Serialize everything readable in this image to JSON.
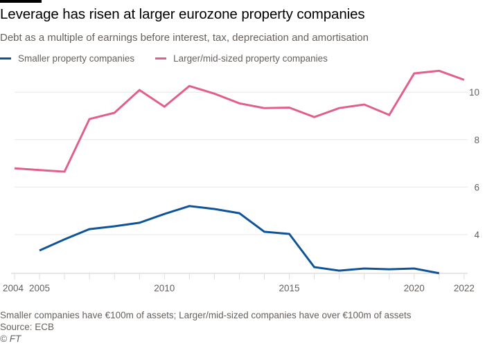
{
  "header": {
    "title": "Leverage has risen at larger eurozone property companies",
    "subtitle": "Debt as a multiple of earnings before interest, tax, depreciation and amortisation"
  },
  "footer": {
    "note": "Smaller companies have €100m of assets; Larger/mid-sized companies have over €100m of assets",
    "source": "Source: ECB",
    "credit": "© FT"
  },
  "chart_data": {
    "type": "line",
    "title": "Leverage has risen at larger eurozone property companies",
    "subtitle": "Debt as a multiple of earnings before interest, tax, depreciation and amortisation",
    "xlabel": "",
    "ylabel": "",
    "xlim": [
      2004,
      2022
    ],
    "ylim": [
      2.4,
      11.0
    ],
    "x_ticks": [
      2004,
      2005,
      2006,
      2007,
      2008,
      2009,
      2010,
      2011,
      2012,
      2013,
      2014,
      2015,
      2016,
      2017,
      2018,
      2019,
      2020,
      2021,
      2022
    ],
    "x_tick_labels": [
      {
        "value": 2004,
        "label": "2004"
      },
      {
        "value": 2005,
        "label": "2005"
      },
      {
        "value": 2010,
        "label": "2010"
      },
      {
        "value": 2015,
        "label": "2015"
      },
      {
        "value": 2020,
        "label": "2020"
      },
      {
        "value": 2022,
        "label": "2022"
      }
    ],
    "y_ticks": [
      4,
      6,
      8,
      10
    ],
    "y_tick_labels": [
      "4",
      "6",
      "8",
      "10"
    ],
    "y_axis_side": "right",
    "grid": true,
    "legend_position": "top-left",
    "series": [
      {
        "name": "Smaller property companies",
        "color": "#0f5499",
        "x": [
          2005,
          2006,
          2007,
          2008,
          2009,
          2010,
          2011,
          2012,
          2013,
          2014,
          2015,
          2016,
          2017,
          2018,
          2019,
          2020,
          2021
        ],
        "values": [
          3.33,
          3.8,
          4.23,
          4.35,
          4.5,
          4.87,
          5.2,
          5.08,
          4.9,
          4.12,
          4.03,
          2.63,
          2.48,
          2.57,
          2.54,
          2.57,
          2.37
        ]
      },
      {
        "name": "Larger/mid-sized property companies",
        "color": "#e0608a",
        "x": [
          2004,
          2005,
          2006,
          2007,
          2008,
          2009,
          2010,
          2011,
          2012,
          2013,
          2014,
          2015,
          2016,
          2017,
          2018,
          2019,
          2020,
          2021,
          2022
        ],
        "values": [
          6.79,
          6.72,
          6.65,
          8.87,
          9.13,
          10.09,
          9.39,
          10.26,
          9.94,
          9.53,
          9.33,
          9.35,
          8.95,
          9.33,
          9.48,
          9.04,
          10.79,
          10.9,
          10.52
        ]
      }
    ]
  }
}
